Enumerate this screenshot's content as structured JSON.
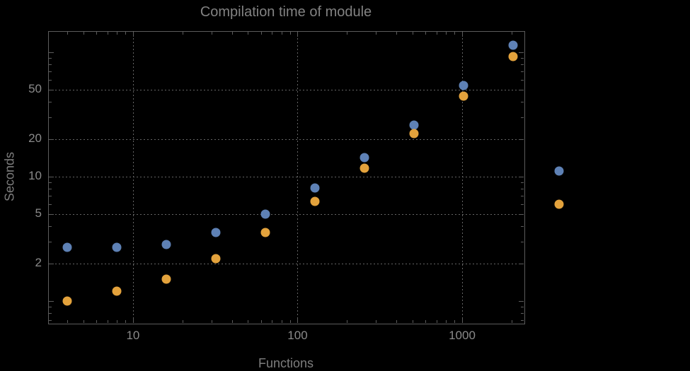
{
  "title": "Compilation time of module",
  "colors": {
    "background": "#000000",
    "frame": "#5c5c5c",
    "grid": "#656565",
    "text": "#8a8a8a",
    "series1": "#5E81B5",
    "series2": "#E3A23C"
  },
  "chart_data": {
    "type": "scatter",
    "title": "Compilation time of module",
    "xlabel": "Functions",
    "ylabel": "Seconds",
    "xscale": "log",
    "yscale": "log",
    "xlim": [
      3.05,
      2366
    ],
    "ylim": [
      0.667,
      148
    ],
    "grid": "dotted",
    "x": [
      4,
      8,
      16,
      32,
      64,
      128,
      256,
      512,
      1024,
      2048
    ],
    "series": [
      {
        "name": "series-1-blue",
        "color": "#5E81B5",
        "values": [
          2.7,
          2.7,
          2.85,
          3.55,
          5.0,
          8.1,
          14.2,
          26.0,
          54.0,
          114.0
        ]
      },
      {
        "name": "series-2-orange",
        "color": "#E3A23C",
        "values": [
          1.0,
          1.2,
          1.5,
          2.2,
          3.55,
          6.3,
          11.7,
          22.3,
          44.3,
          93.0
        ]
      }
    ],
    "x_gridlines": [
      10,
      100,
      1000
    ],
    "y_gridlines": [
      2,
      5,
      10,
      20,
      50
    ],
    "x_ticks_major": [
      10,
      100,
      1000
    ],
    "x_ticks_minor": [
      4,
      5,
      6,
      7,
      8,
      9,
      20,
      30,
      40,
      50,
      60,
      70,
      80,
      90,
      200,
      300,
      400,
      500,
      600,
      700,
      800,
      900,
      2000
    ],
    "x_tick_labels": [
      {
        "value": 10,
        "label": "10"
      },
      {
        "value": 100,
        "label": "100"
      },
      {
        "value": 1000,
        "label": "1000"
      }
    ],
    "y_ticks_major": [
      1,
      2,
      5,
      10,
      20,
      50,
      100
    ],
    "y_ticks_minor": [
      0.7,
      0.8,
      0.9,
      3,
      4,
      6,
      7,
      8,
      9,
      30,
      40,
      60,
      70,
      80,
      90
    ],
    "y_tick_labels": [
      {
        "value": 2,
        "label": "2"
      },
      {
        "value": 5,
        "label": "5"
      },
      {
        "value": 10,
        "label": "10"
      },
      {
        "value": 20,
        "label": "20"
      },
      {
        "value": 50,
        "label": "50"
      }
    ],
    "legend_position": "right"
  },
  "legend": {
    "markers": [
      {
        "name": "series-1-marker",
        "color": "#5E81B5"
      },
      {
        "name": "series-2-marker",
        "color": "#E3A23C"
      }
    ]
  }
}
